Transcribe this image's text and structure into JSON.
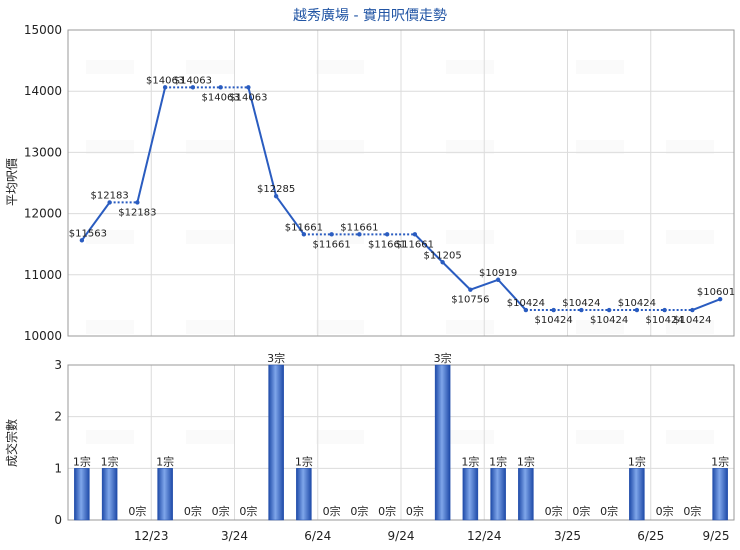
{
  "chart_data": [
    {
      "type": "line",
      "title": "越秀廣場 - 實用呎價走勢",
      "ylabel": "平均呎價",
      "ylim": [
        10000,
        15000
      ],
      "yticks": [
        10000,
        11000,
        12000,
        13000,
        14000,
        15000
      ],
      "x_index": [
        0,
        1,
        2,
        3,
        4,
        5,
        6,
        7,
        8,
        9,
        10,
        11,
        12,
        13,
        14,
        15,
        16,
        17,
        18,
        19,
        20,
        21,
        22,
        23
      ],
      "values": [
        11563,
        12183,
        12183,
        14063,
        14063,
        14063,
        14063,
        12285,
        11661,
        11661,
        11661,
        11661,
        11661,
        11205,
        10756,
        10919,
        10424,
        10424,
        10424,
        10424,
        10424,
        10424,
        10424,
        10601
      ],
      "labels": [
        "$11563",
        "$12183",
        "$12183",
        "$14063",
        "$14063",
        "$14063",
        "$14063",
        "$12285",
        "$11661",
        "$11661",
        "$11661",
        "$11661",
        "$11661",
        "$11205",
        "$10756",
        "$10919",
        "$10424",
        "$10424",
        "$10424",
        "$10424",
        "$10424",
        "$10424",
        "$10424",
        "$10601"
      ],
      "dotted_segments_after_index": [
        1,
        3,
        4,
        5,
        8,
        9,
        10,
        11,
        16,
        17,
        18,
        19,
        20,
        21
      ],
      "color": "#2a5cc0",
      "grid": true
    },
    {
      "type": "bar",
      "ylabel": "成交宗數",
      "ylim": [
        0,
        3
      ],
      "yticks": [
        0,
        1,
        2,
        3
      ],
      "values": [
        1,
        1,
        0,
        1,
        0,
        0,
        0,
        3,
        1,
        0,
        0,
        0,
        0,
        3,
        1,
        1,
        1,
        0,
        0,
        0,
        1,
        0,
        0,
        1
      ],
      "labels": [
        "1宗",
        "1宗",
        "0宗",
        "1宗",
        "0宗",
        "0宗",
        "0宗",
        "3宗",
        "1宗",
        "0宗",
        "0宗",
        "0宗",
        "0宗",
        "3宗",
        "1宗",
        "1宗",
        "1宗",
        "0宗",
        "0宗",
        "0宗",
        "1宗",
        "0宗",
        "0宗",
        "1宗"
      ],
      "xtick_labels": [
        "12/23",
        "3/24",
        "6/24",
        "9/24",
        "12/24",
        "3/25",
        "6/25",
        "9/25"
      ],
      "color": "#2a5cc0",
      "grid": true
    }
  ]
}
